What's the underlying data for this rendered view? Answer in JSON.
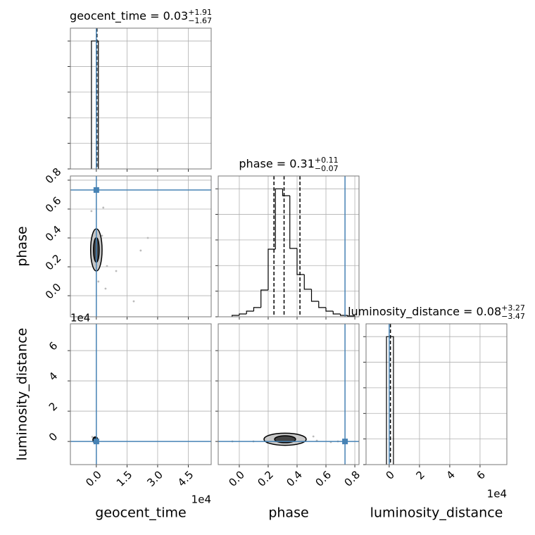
{
  "chart_data": {
    "type": "corner",
    "truth_color": "#4682b4",
    "hist_color": "#000000",
    "point_color": "#bbbbbb",
    "grid": true,
    "parameters": [
      {
        "name": "geocent_time",
        "label": "geocent_time",
        "offset": "1e4",
        "lim": [
          -1.27,
          5.62
        ],
        "ticks": [
          {
            "value": 0,
            "label": "0.0"
          },
          1.5,
          {
            "value": 3,
            "label": "3.0"
          },
          4.5
        ],
        "truth": 0,
        "title": {
          "text": "geocent_time = 0.03",
          "plus": "+1.91",
          "minus": "−1.67"
        },
        "hist": {
          "bins": [
            -0.24,
            0.1
          ],
          "counts": [
            1.0
          ],
          "ylim": [
            0,
            1.1
          ],
          "yticks": [
            0,
            0.2,
            0.4,
            0.6,
            0.8,
            1.0
          ],
          "quantiles": [
            0.03
          ]
        }
      },
      {
        "name": "phase",
        "label": "phase",
        "lim": [
          -0.146,
          0.829
        ],
        "ticks": [
          {
            "value": 0,
            "label": "0.0"
          },
          0.2,
          0.4,
          0.6,
          0.8
        ],
        "truth": 0.732,
        "title": {
          "text": "phase = 0.31",
          "plus": "+0.11",
          "minus": "−0.07"
        },
        "hist": {
          "bins": [
            -0.05,
            0.0,
            0.05,
            0.1,
            0.15,
            0.2,
            0.25,
            0.3,
            0.35,
            0.4,
            0.45,
            0.5,
            0.55,
            0.6,
            0.65,
            0.7,
            0.75,
            0.8
          ],
          "counts": [
            0.011,
            0.022,
            0.044,
            0.072,
            0.209,
            0.528,
            1.0,
            0.946,
            0.534,
            0.33,
            0.215,
            0.121,
            0.072,
            0.044,
            0.022,
            0.011,
            0.006
          ],
          "ylim": [
            0,
            1.1
          ],
          "yticks": [
            0,
            0.2,
            0.4,
            0.6,
            0.8,
            1.0
          ],
          "quantiles": [
            0.24,
            0.31,
            0.42
          ]
        }
      },
      {
        "name": "luminosity_distance",
        "label": "luminosity_distance",
        "offset": "1e4",
        "lim": [
          -1.53,
          7.77
        ],
        "ticks": [
          0,
          2,
          4,
          6
        ],
        "truth": 0,
        "title": {
          "text": "luminosity_distance = 0.08",
          "plus": "+3.27",
          "minus": "−3.47"
        },
        "hist": {
          "bins": [
            -0.18,
            0.28
          ],
          "counts": [
            1.0
          ],
          "ylim": [
            0,
            1.1
          ],
          "yticks": [
            0,
            0.2,
            0.4,
            0.6,
            0.8,
            1.0
          ],
          "quantiles": [
            0.08
          ]
        }
      }
    ],
    "pairs": [
      {
        "points": {
          "x": [
            0.34,
            0.97,
            1.83,
            2.52,
            2.17,
            0.45,
            -0.24,
            0.1,
            0.52,
            0.28
          ],
          "y": [
            0.61,
            0.171,
            -0.039,
            0.4,
            0.313,
            0.049,
            0.586,
            0.098,
            0.205,
            0.415
          ]
        },
        "center": [
          0.0,
          0.317
        ],
        "contours": [
          {
            "rx": 0.28,
            "ry": 0.146
          },
          {
            "rx": 0.14,
            "ry": 0.085
          }
        ]
      },
      {
        "points": {
          "x": [
            -0.2,
            0.1
          ],
          "y": [
            0.3,
            -0.1
          ]
        },
        "center": [
          -0.05,
          0.1
        ],
        "contours": [
          {
            "rx": 0.12,
            "ry": 0.2
          }
        ]
      },
      {
        "points": {
          "x": [
            0.098,
            0.537,
            0.634,
            -0.048,
            0.513,
            0.195,
            0.683
          ],
          "y": [
            0.005,
            0.05,
            -0.04,
            0.005,
            0.33,
            -0.09,
            0.005
          ]
        },
        "center": [
          0.317,
          0.145
        ],
        "contours": [
          {
            "rx": 0.146,
            "ry": 0.4
          },
          {
            "rx": 0.073,
            "ry": 0.23
          }
        ]
      }
    ]
  }
}
